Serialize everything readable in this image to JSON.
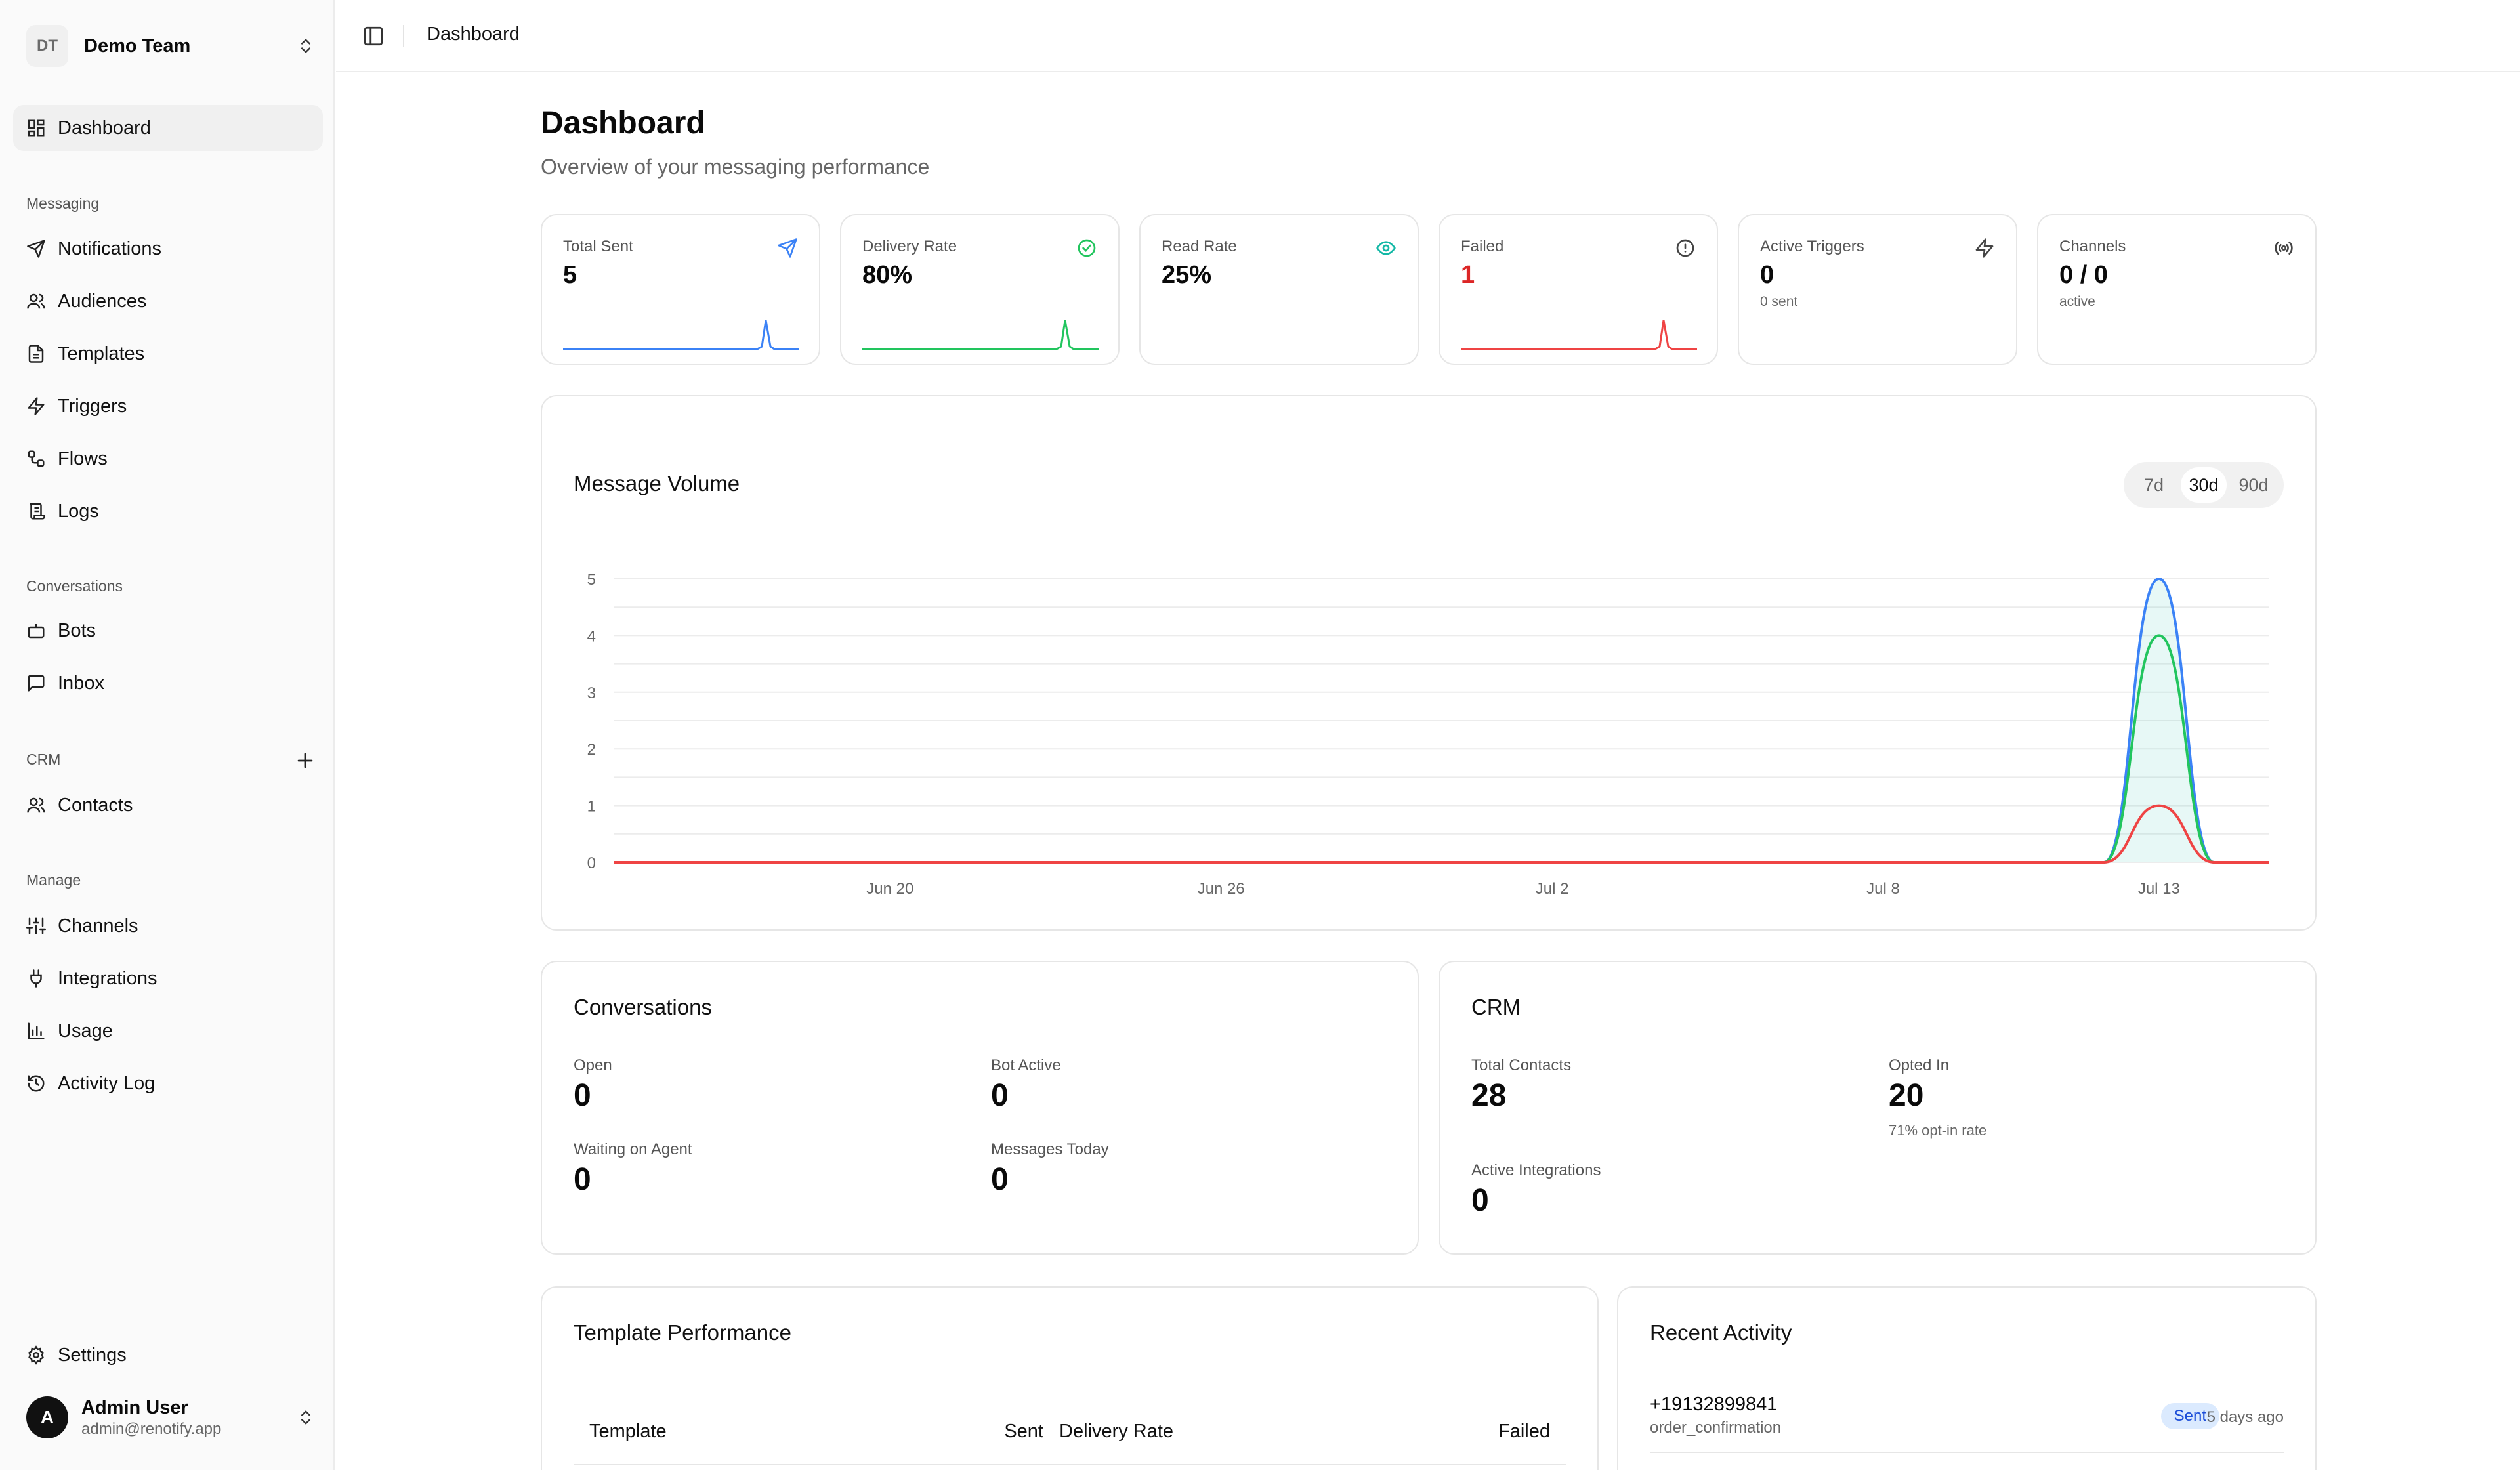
{
  "team": {
    "initials": "DT",
    "name": "Demo Team"
  },
  "nav": {
    "dashboard": "Dashboard",
    "messaging_title": "Messaging",
    "notifications": "Notifications",
    "audiences": "Audiences",
    "templates": "Templates",
    "triggers": "Triggers",
    "flows": "Flows",
    "logs": "Logs",
    "conversations_title": "Conversations",
    "bots": "Bots",
    "inbox": "Inbox",
    "crm_title": "CRM",
    "contacts": "Contacts",
    "manage_title": "Manage",
    "channels": "Channels",
    "integrations": "Integrations",
    "usage": "Usage",
    "activity_log": "Activity Log",
    "settings": "Settings"
  },
  "user": {
    "initial": "A",
    "name": "Admin User",
    "email": "admin@renotify.app"
  },
  "breadcrumb": "Dashboard",
  "page": {
    "title": "Dashboard",
    "subtitle": "Overview of your messaging performance"
  },
  "stats": {
    "total_sent": {
      "label": "Total Sent",
      "value": "5"
    },
    "delivery_rate": {
      "label": "Delivery Rate",
      "value": "80%"
    },
    "read_rate": {
      "label": "Read Rate",
      "value": "25%"
    },
    "failed": {
      "label": "Failed",
      "value": "1"
    },
    "active_triggers": {
      "label": "Active Triggers",
      "value": "0",
      "sub": "0 sent"
    },
    "channels": {
      "label": "Channels",
      "value": "0 / 0",
      "sub": "active"
    }
  },
  "colors": {
    "sent": "#3b82f6",
    "delivered": "#22c55e",
    "failed": "#ef4444",
    "read": "#14b8a6"
  },
  "volume": {
    "title": "Message Volume",
    "ranges": [
      "7d",
      "30d",
      "90d"
    ],
    "selected_range": "30d"
  },
  "chart_data": {
    "type": "area",
    "y_ticks": [
      "0",
      "1",
      "2",
      "3",
      "4",
      "5"
    ],
    "ylim": [
      0,
      5
    ],
    "x_tick_labels": [
      "Jun 20",
      "Jun 26",
      "Jul 2",
      "Jul 8",
      "Jul 13"
    ],
    "x": [
      "Jun 15",
      "Jun 16",
      "Jun 17",
      "Jun 18",
      "Jun 19",
      "Jun 20",
      "Jun 21",
      "Jun 22",
      "Jun 23",
      "Jun 24",
      "Jun 25",
      "Jun 26",
      "Jun 27",
      "Jun 28",
      "Jun 29",
      "Jun 30",
      "Jul 1",
      "Jul 2",
      "Jul 3",
      "Jul 4",
      "Jul 5",
      "Jul 6",
      "Jul 7",
      "Jul 8",
      "Jul 9",
      "Jul 10",
      "Jul 11",
      "Jul 12",
      "Jul 13",
      "Jul 14",
      "Jul 15"
    ],
    "series": [
      {
        "values": [
          0,
          0,
          0,
          0,
          0,
          0,
          0,
          0,
          0,
          0,
          0,
          0,
          0,
          0,
          0,
          0,
          0,
          0,
          0,
          0,
          0,
          0,
          0,
          0,
          0,
          0,
          0,
          0,
          5,
          0,
          0
        ]
      },
      {
        "values": [
          0,
          0,
          0,
          0,
          0,
          0,
          0,
          0,
          0,
          0,
          0,
          0,
          0,
          0,
          0,
          0,
          0,
          0,
          0,
          0,
          0,
          0,
          0,
          0,
          0,
          0,
          0,
          0,
          4,
          0,
          0
        ]
      },
      {
        "values": [
          0,
          0,
          0,
          0,
          0,
          0,
          0,
          0,
          0,
          0,
          0,
          0,
          0,
          0,
          0,
          0,
          0,
          0,
          0,
          0,
          0,
          0,
          0,
          0,
          0,
          0,
          0,
          0,
          1,
          0,
          0
        ]
      }
    ]
  },
  "conversations": {
    "title": "Conversations",
    "open_label": "Open",
    "open_value": "0",
    "bot_active_label": "Bot Active",
    "bot_active_value": "0",
    "waiting_label": "Waiting on Agent",
    "waiting_value": "0",
    "messages_today_label": "Messages Today",
    "messages_today_value": "0"
  },
  "crm": {
    "title": "CRM",
    "total_contacts_label": "Total Contacts",
    "total_contacts_value": "28",
    "opted_in_label": "Opted In",
    "opted_in_value": "20",
    "opt_in_rate": "71% opt-in rate",
    "active_integrations_label": "Active Integrations",
    "active_integrations_value": "0"
  },
  "template_performance": {
    "title": "Template Performance",
    "columns": {
      "template": "Template",
      "sent": "Sent",
      "delivery_rate": "Delivery Rate",
      "failed": "Failed"
    }
  },
  "recent_activity": {
    "title": "Recent Activity",
    "items": [
      {
        "phone": "+19132899841",
        "template": "order_confirmation",
        "status": "Sent",
        "ago": "5 days ago"
      }
    ]
  }
}
